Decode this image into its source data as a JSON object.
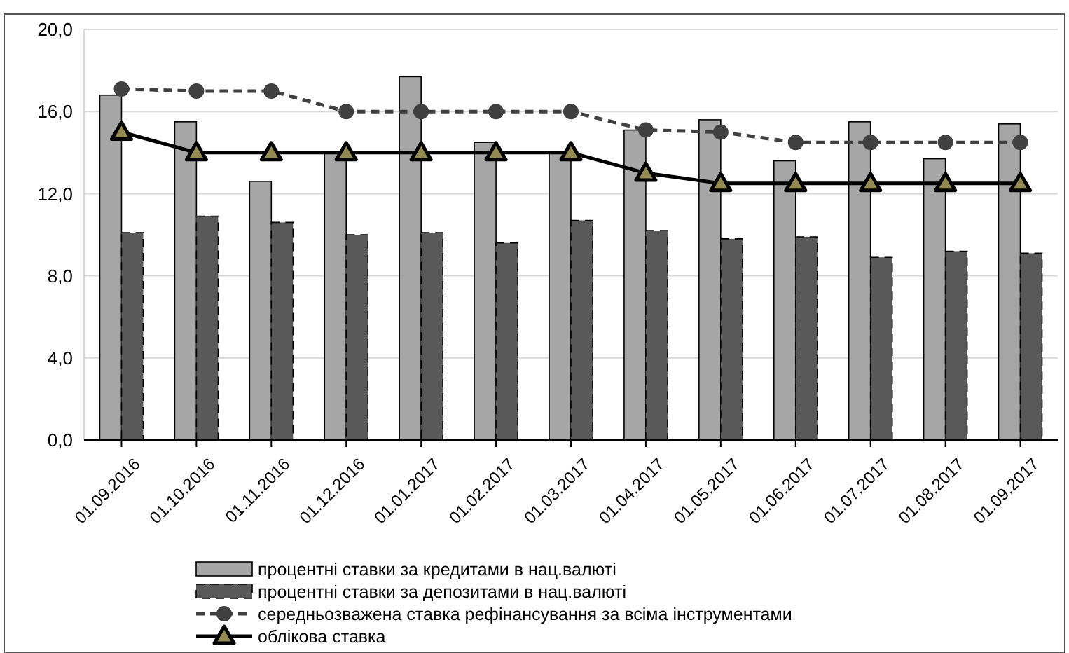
{
  "chart_data": {
    "type": "bar",
    "categories": [
      "01.09.2016",
      "01.10.2016",
      "01.11.2016",
      "01.12.2016",
      "01.01.2017",
      "01.02.2017",
      "01.03.2017",
      "01.04.2017",
      "01.05.2017",
      "01.06.2017",
      "01.07.2017",
      "01.08.2017",
      "01.09.2017"
    ],
    "series": [
      {
        "name": "процентні ставки за кредитами в нац.валюті",
        "color": "#a6a6a6",
        "values": [
          16.8,
          15.5,
          12.6,
          14.0,
          17.7,
          14.5,
          14.0,
          15.1,
          15.6,
          13.6,
          15.5,
          13.7,
          15.4
        ]
      },
      {
        "name": "процентні ставки за депозитами в нац.валюті",
        "color": "#595959",
        "line_style": "dashed",
        "values": [
          10.1,
          10.9,
          10.6,
          10.0,
          10.1,
          9.6,
          10.7,
          10.2,
          9.8,
          9.9,
          8.9,
          9.2,
          9.1
        ]
      },
      {
        "name": "середньозважена  ставка рефінансування за всіма інструментами",
        "color": "#404040",
        "type": "line",
        "line_style": "dashed",
        "marker": "circle",
        "values": [
          17.1,
          17.0,
          17.0,
          16.0,
          16.0,
          16.0,
          16.0,
          15.1,
          15.0,
          14.5,
          14.5,
          14.5,
          14.5
        ]
      },
      {
        "name": "облікова ставка",
        "color": "#000000",
        "type": "line",
        "line_style": "solid",
        "marker": "triangle",
        "values": [
          15.0,
          14.0,
          14.0,
          14.0,
          14.0,
          14.0,
          14.0,
          13.0,
          12.5,
          12.5,
          12.5,
          12.5,
          12.5
        ]
      }
    ],
    "ylim": [
      0,
      20
    ],
    "yticks": [
      {
        "value": 0,
        "label": "0,0"
      },
      {
        "value": 4,
        "label": "4,0"
      },
      {
        "value": 8,
        "label": "8,0"
      },
      {
        "value": 12,
        "label": "12,0"
      },
      {
        "value": 16,
        "label": "16,0"
      },
      {
        "value": 20,
        "label": "20,0"
      }
    ],
    "grid": "y",
    "legend": "bottom"
  }
}
